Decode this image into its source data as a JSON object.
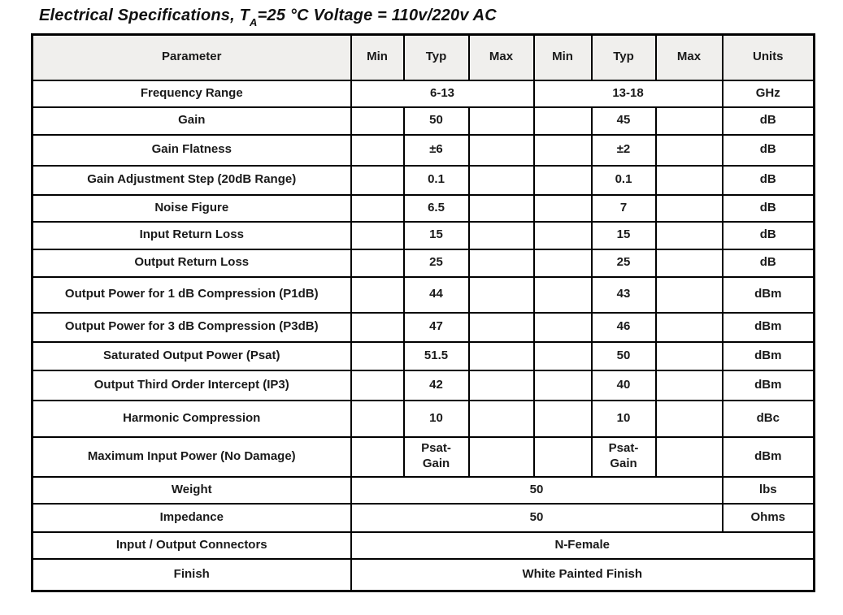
{
  "page": {
    "background": "#ffffff",
    "text_color": "#1a1a1a",
    "header_bg": "#f0efed",
    "border_color": "#000000"
  },
  "title": {
    "prefix": "Electrical Specifications, T",
    "subscript": "A",
    "suffix": "=25 °C Voltage = 110v/220v AC"
  },
  "table": {
    "headers": [
      "Parameter",
      "Min",
      "Typ",
      "Max",
      "Min",
      "Typ",
      "Max",
      "Units"
    ],
    "rows": [
      {
        "cells": [
          {
            "t": "Frequency Range",
            "name": "param-cell"
          },
          {
            "t": "6-13",
            "span": 3,
            "name": "value-cell"
          },
          {
            "t": "13-18",
            "span": 3,
            "name": "value-cell"
          },
          {
            "t": "GHz",
            "name": "units-cell"
          }
        ]
      },
      {
        "cells": [
          {
            "t": "Gain",
            "name": "param-cell"
          },
          {
            "t": "",
            "name": "empty-cell"
          },
          {
            "t": "50",
            "name": "value-cell"
          },
          {
            "t": "",
            "name": "empty-cell"
          },
          {
            "t": "",
            "name": "empty-cell"
          },
          {
            "t": "45",
            "name": "value-cell"
          },
          {
            "t": "",
            "name": "empty-cell"
          },
          {
            "t": "dB",
            "name": "units-cell"
          }
        ]
      },
      {
        "cells": [
          {
            "t": "Gain Flatness",
            "name": "param-cell"
          },
          {
            "t": "",
            "name": "empty-cell"
          },
          {
            "t": "±6",
            "name": "value-cell"
          },
          {
            "t": "",
            "name": "empty-cell"
          },
          {
            "t": "",
            "name": "empty-cell"
          },
          {
            "t": "±2",
            "name": "value-cell"
          },
          {
            "t": "",
            "name": "empty-cell"
          },
          {
            "t": "dB",
            "name": "units-cell"
          }
        ]
      },
      {
        "cells": [
          {
            "t": "Gain Adjustment Step (20dB Range)",
            "name": "param-cell"
          },
          {
            "t": "",
            "name": "empty-cell"
          },
          {
            "t": "0.1",
            "name": "value-cell"
          },
          {
            "t": "",
            "name": "empty-cell"
          },
          {
            "t": "",
            "name": "empty-cell"
          },
          {
            "t": "0.1",
            "name": "value-cell"
          },
          {
            "t": "",
            "name": "empty-cell"
          },
          {
            "t": "dB",
            "name": "units-cell"
          }
        ]
      },
      {
        "cells": [
          {
            "t": "Noise Figure",
            "name": "param-cell"
          },
          {
            "t": "",
            "name": "empty-cell"
          },
          {
            "t": "6.5",
            "name": "value-cell"
          },
          {
            "t": "",
            "name": "empty-cell"
          },
          {
            "t": "",
            "name": "empty-cell"
          },
          {
            "t": "7",
            "name": "value-cell"
          },
          {
            "t": "",
            "name": "empty-cell"
          },
          {
            "t": "dB",
            "name": "units-cell"
          }
        ]
      },
      {
        "cells": [
          {
            "t": "Input Return Loss",
            "name": "param-cell"
          },
          {
            "t": "",
            "name": "empty-cell"
          },
          {
            "t": "15",
            "name": "value-cell"
          },
          {
            "t": "",
            "name": "empty-cell"
          },
          {
            "t": "",
            "name": "empty-cell"
          },
          {
            "t": "15",
            "name": "value-cell"
          },
          {
            "t": "",
            "name": "empty-cell"
          },
          {
            "t": "dB",
            "name": "units-cell"
          }
        ]
      },
      {
        "cells": [
          {
            "t": "Output Return Loss",
            "name": "param-cell"
          },
          {
            "t": "",
            "name": "empty-cell"
          },
          {
            "t": "25",
            "name": "value-cell"
          },
          {
            "t": "",
            "name": "empty-cell"
          },
          {
            "t": "",
            "name": "empty-cell"
          },
          {
            "t": "25",
            "name": "value-cell"
          },
          {
            "t": "",
            "name": "empty-cell"
          },
          {
            "t": "dB",
            "name": "units-cell"
          }
        ]
      },
      {
        "cells": [
          {
            "t": "Output Power for 1 dB Compression (P1dB)",
            "name": "param-cell"
          },
          {
            "t": "",
            "name": "empty-cell"
          },
          {
            "t": "44",
            "name": "value-cell"
          },
          {
            "t": "",
            "name": "empty-cell"
          },
          {
            "t": "",
            "name": "empty-cell"
          },
          {
            "t": "43",
            "name": "value-cell"
          },
          {
            "t": "",
            "name": "empty-cell"
          },
          {
            "t": "dBm",
            "name": "units-cell"
          }
        ]
      },
      {
        "cells": [
          {
            "t": "Output Power for 3 dB Compression (P3dB)",
            "name": "param-cell"
          },
          {
            "t": "",
            "name": "empty-cell"
          },
          {
            "t": "47",
            "name": "value-cell"
          },
          {
            "t": "",
            "name": "empty-cell"
          },
          {
            "t": "",
            "name": "empty-cell"
          },
          {
            "t": "46",
            "name": "value-cell"
          },
          {
            "t": "",
            "name": "empty-cell"
          },
          {
            "t": "dBm",
            "name": "units-cell"
          }
        ]
      },
      {
        "cells": [
          {
            "t": "Saturated Output Power (Psat)",
            "name": "param-cell"
          },
          {
            "t": "",
            "name": "empty-cell"
          },
          {
            "t": "51.5",
            "name": "value-cell"
          },
          {
            "t": "",
            "name": "empty-cell"
          },
          {
            "t": "",
            "name": "empty-cell"
          },
          {
            "t": "50",
            "name": "value-cell"
          },
          {
            "t": "",
            "name": "empty-cell"
          },
          {
            "t": "dBm",
            "name": "units-cell"
          }
        ]
      },
      {
        "cells": [
          {
            "t": "Output Third Order Intercept (IP3)",
            "name": "param-cell"
          },
          {
            "t": "",
            "name": "empty-cell"
          },
          {
            "t": "42",
            "name": "value-cell"
          },
          {
            "t": "",
            "name": "empty-cell"
          },
          {
            "t": "",
            "name": "empty-cell"
          },
          {
            "t": "40",
            "name": "value-cell"
          },
          {
            "t": "",
            "name": "empty-cell"
          },
          {
            "t": "dBm",
            "name": "units-cell"
          }
        ]
      },
      {
        "cells": [
          {
            "t": "Harmonic Compression",
            "name": "param-cell"
          },
          {
            "t": "",
            "name": "empty-cell"
          },
          {
            "t": "10",
            "name": "value-cell"
          },
          {
            "t": "",
            "name": "empty-cell"
          },
          {
            "t": "",
            "name": "empty-cell"
          },
          {
            "t": "10",
            "name": "value-cell"
          },
          {
            "t": "",
            "name": "empty-cell"
          },
          {
            "t": "dBc",
            "name": "units-cell"
          }
        ]
      },
      {
        "cells": [
          {
            "t": "Maximum Input Power (No Damage)",
            "name": "param-cell"
          },
          {
            "t": "",
            "name": "empty-cell"
          },
          {
            "t": "Psat-\nGain",
            "name": "value-cell"
          },
          {
            "t": "",
            "name": "empty-cell"
          },
          {
            "t": "",
            "name": "empty-cell"
          },
          {
            "t": "Psat-\nGain",
            "name": "value-cell"
          },
          {
            "t": "",
            "name": "empty-cell"
          },
          {
            "t": "dBm",
            "name": "units-cell"
          }
        ]
      },
      {
        "cells": [
          {
            "t": "Weight",
            "name": "param-cell"
          },
          {
            "t": "50",
            "span": 6,
            "name": "value-cell"
          },
          {
            "t": "lbs",
            "name": "units-cell"
          }
        ]
      },
      {
        "cells": [
          {
            "t": "Impedance",
            "name": "param-cell"
          },
          {
            "t": "50",
            "span": 6,
            "name": "value-cell"
          },
          {
            "t": "Ohms",
            "name": "units-cell"
          }
        ]
      },
      {
        "cells": [
          {
            "t": "Input / Output Connectors",
            "name": "param-cell"
          },
          {
            "t": "N-Female",
            "span": 7,
            "name": "value-cell"
          }
        ]
      },
      {
        "cells": [
          {
            "t": "Finish",
            "name": "param-cell"
          },
          {
            "t": "White Painted Finish",
            "span": 7,
            "name": "value-cell"
          }
        ]
      }
    ]
  }
}
